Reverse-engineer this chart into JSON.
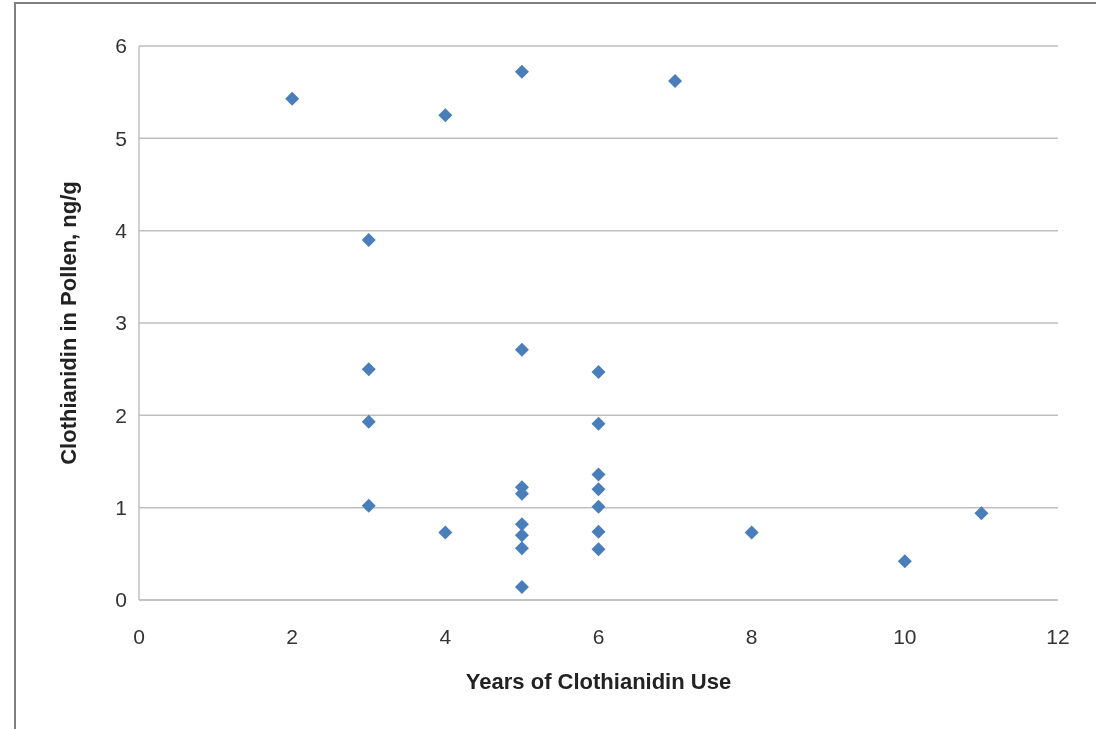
{
  "chart_data": {
    "type": "scatter",
    "xlabel": "Years of Clothianidin Use",
    "ylabel": "Clothianidin in Pollen, ng/g",
    "series": [
      {
        "color": "#4a7ebb",
        "x": [
          2,
          3,
          3,
          3,
          3,
          4,
          4,
          5,
          5,
          5,
          5,
          5,
          5,
          5,
          5,
          6,
          6,
          6,
          6,
          6,
          6,
          6,
          7,
          8,
          10,
          11
        ],
        "values": [
          5.43,
          3.9,
          2.5,
          1.93,
          1.02,
          5.25,
          0.73,
          5.72,
          2.71,
          1.22,
          1.15,
          0.82,
          0.7,
          0.56,
          0.14,
          2.47,
          1.91,
          1.36,
          1.2,
          1.01,
          0.74,
          0.55,
          5.62,
          0.73,
          0.42,
          0.94
        ]
      }
    ],
    "xlim": [
      0,
      12
    ],
    "xticks": [
      0,
      2,
      4,
      6,
      8,
      10,
      12
    ],
    "ylim": [
      0,
      6
    ],
    "yticks": [
      0,
      1,
      2,
      3,
      4,
      5,
      6
    ],
    "grid": "y",
    "marker": "diamond"
  }
}
